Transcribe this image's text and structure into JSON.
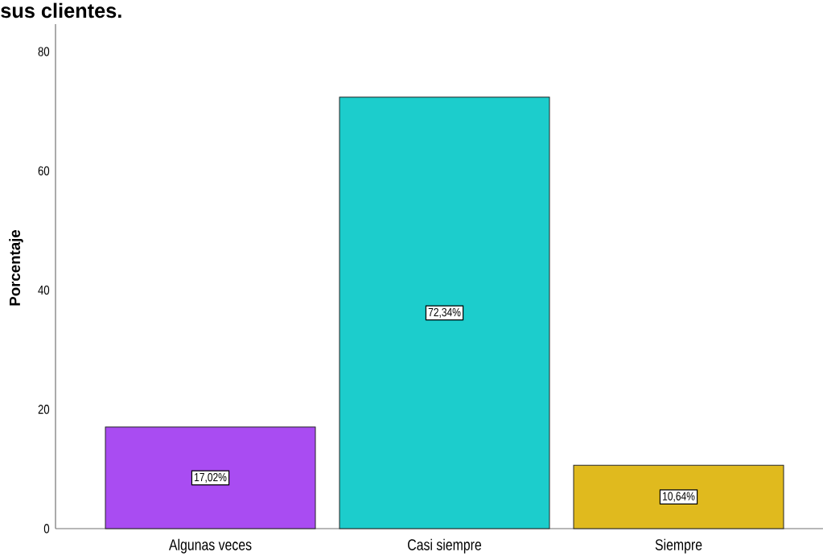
{
  "chart_data": {
    "type": "bar",
    "title": "sus clientes.",
    "ylabel": "Porcentaje",
    "categories": [
      "Algunas veces",
      "Casi siempre",
      "Siempre"
    ],
    "values": [
      17.02,
      72.34,
      10.64
    ],
    "colors": [
      "#a94cf2",
      "#1ccdcc",
      "#e0ba1e"
    ],
    "value_labels": [
      "17,02%",
      "72,34%",
      "10,64%"
    ],
    "ylim": [
      0,
      84.6
    ],
    "yticks": [
      0,
      20,
      40,
      60,
      80
    ]
  }
}
